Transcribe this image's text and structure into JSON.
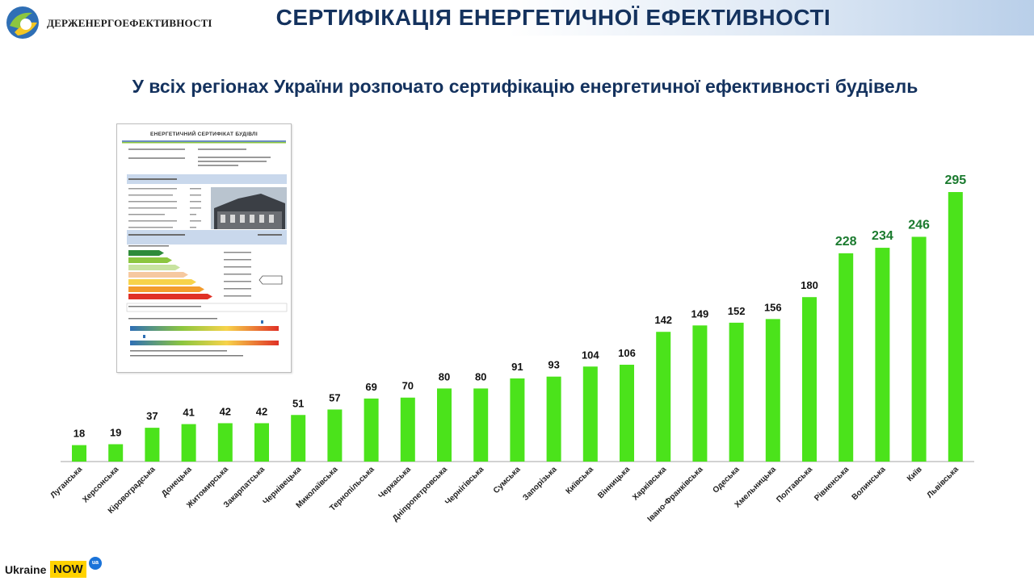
{
  "header": {
    "title": "СЕРТИФІКАЦІЯ ЕНЕРГЕТИЧНОЇ ЕФЕКТИВНОСТІ",
    "logo_text": "ДЕРЖЕНЕРГОЕФЕКТИВНОСТІ"
  },
  "subtitle": "У всіх регіонах України розпочато сертифікацію енергетичної ефективності будівель",
  "certificate": {
    "title": "ЕНЕРГЕТИЧНИЙ СЕРТИФІКАТ БУДІВЛІ",
    "scale_letters": [
      "A",
      "B",
      "C",
      "D",
      "E",
      "F",
      "G"
    ]
  },
  "footer": {
    "brand_word": "Ukraine",
    "brand_now": "NOW",
    "brand_ua": "ua"
  },
  "colors": {
    "bar": "#4be31b",
    "value_highlight": "#1a7a2e",
    "title": "#14325e"
  },
  "chart_data": {
    "type": "bar",
    "categories": [
      "Луганська",
      "Херсонська",
      "Кіровоградська",
      "Донецька",
      "Житомирська",
      "Закарпатська",
      "Чернівецька",
      "Миколаївська",
      "Тернопільська",
      "Черкаська",
      "Дніпропетровська",
      "Чернігівська",
      "Сумська",
      "Запорізька",
      "Київська",
      "Вінницька",
      "Харківська",
      "Івано-Франківська",
      "Одеська",
      "Хмельницька",
      "Полтавська",
      "Рівненська",
      "Волинська",
      "Київ",
      "Львівська"
    ],
    "values": [
      18,
      19,
      37,
      41,
      42,
      42,
      51,
      57,
      69,
      70,
      80,
      80,
      91,
      93,
      104,
      106,
      142,
      149,
      152,
      156,
      180,
      228,
      234,
      246,
      295
    ],
    "highlighted_values": [
      228,
      234,
      246,
      295
    ],
    "ylim": [
      0,
      300
    ],
    "grid": false,
    "legend": "none"
  }
}
